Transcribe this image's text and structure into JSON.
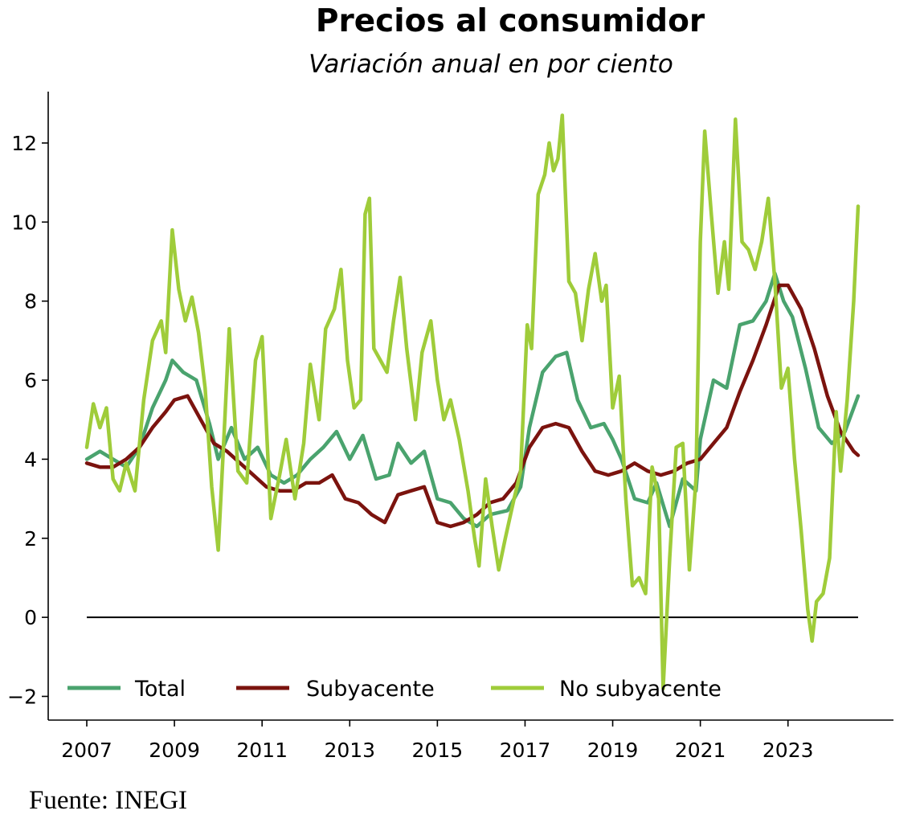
{
  "chart_data": {
    "type": "line",
    "title": "Precios al consumidor",
    "subtitle": "Variación anual en por ciento",
    "source": "Fuente: INEGI",
    "xlim": [
      2007,
      2024.6
    ],
    "ylim": [
      -2.6,
      13.3
    ],
    "xticks": [
      {
        "value": 2007,
        "label": "2007"
      },
      {
        "value": 2009,
        "label": "2009"
      },
      {
        "value": 2011,
        "label": "2011"
      },
      {
        "value": 2013,
        "label": "2013"
      },
      {
        "value": 2015,
        "label": "2015"
      },
      {
        "value": 2017,
        "label": "2017"
      },
      {
        "value": 2019,
        "label": "2019"
      },
      {
        "value": 2021,
        "label": "2021"
      },
      {
        "value": 2023,
        "label": "2023"
      }
    ],
    "yticks": [
      {
        "value": -2,
        "label": "−2"
      },
      {
        "value": 0,
        "label": "0"
      },
      {
        "value": 2,
        "label": "2"
      },
      {
        "value": 4,
        "label": "4"
      },
      {
        "value": 6,
        "label": "6"
      },
      {
        "value": 8,
        "label": "8"
      },
      {
        "value": 10,
        "label": "10"
      },
      {
        "value": 12,
        "label": "12"
      }
    ],
    "reference_line": 0,
    "grid": false,
    "legend_position": "bottom-left",
    "series": [
      {
        "name": "Total",
        "color": "#4aa36e",
        "points": [
          [
            2007.0,
            4.0
          ],
          [
            2007.3,
            4.2
          ],
          [
            2007.6,
            4.0
          ],
          [
            2007.9,
            3.8
          ],
          [
            2008.2,
            4.3
          ],
          [
            2008.5,
            5.3
          ],
          [
            2008.8,
            6.0
          ],
          [
            2008.95,
            6.5
          ],
          [
            2009.2,
            6.2
          ],
          [
            2009.5,
            6.0
          ],
          [
            2009.8,
            4.9
          ],
          [
            2010.0,
            4.0
          ],
          [
            2010.3,
            4.8
          ],
          [
            2010.6,
            4.0
          ],
          [
            2010.9,
            4.3
          ],
          [
            2011.2,
            3.6
          ],
          [
            2011.5,
            3.4
          ],
          [
            2011.8,
            3.6
          ],
          [
            2012.1,
            4.0
          ],
          [
            2012.4,
            4.3
          ],
          [
            2012.7,
            4.7
          ],
          [
            2013.0,
            4.0
          ],
          [
            2013.3,
            4.6
          ],
          [
            2013.6,
            3.5
          ],
          [
            2013.9,
            3.6
          ],
          [
            2014.1,
            4.4
          ],
          [
            2014.4,
            3.9
          ],
          [
            2014.7,
            4.2
          ],
          [
            2015.0,
            3.0
          ],
          [
            2015.3,
            2.9
          ],
          [
            2015.6,
            2.5
          ],
          [
            2015.9,
            2.3
          ],
          [
            2016.2,
            2.6
          ],
          [
            2016.6,
            2.7
          ],
          [
            2016.9,
            3.3
          ],
          [
            2017.1,
            4.8
          ],
          [
            2017.4,
            6.2
          ],
          [
            2017.7,
            6.6
          ],
          [
            2017.95,
            6.7
          ],
          [
            2018.2,
            5.5
          ],
          [
            2018.5,
            4.8
          ],
          [
            2018.8,
            4.9
          ],
          [
            2019.0,
            4.5
          ],
          [
            2019.2,
            4.0
          ],
          [
            2019.5,
            3.0
          ],
          [
            2019.8,
            2.9
          ],
          [
            2020.0,
            3.4
          ],
          [
            2020.3,
            2.3
          ],
          [
            2020.6,
            3.5
          ],
          [
            2020.9,
            3.2
          ],
          [
            2021.0,
            4.5
          ],
          [
            2021.3,
            6.0
          ],
          [
            2021.6,
            5.8
          ],
          [
            2021.9,
            7.4
          ],
          [
            2022.2,
            7.5
          ],
          [
            2022.5,
            8.0
          ],
          [
            2022.7,
            8.7
          ],
          [
            2022.9,
            8.0
          ],
          [
            2023.1,
            7.6
          ],
          [
            2023.4,
            6.3
          ],
          [
            2023.7,
            4.8
          ],
          [
            2024.0,
            4.4
          ],
          [
            2024.3,
            4.7
          ],
          [
            2024.6,
            5.6
          ]
        ]
      },
      {
        "name": "Subyacente",
        "color": "#7b130e",
        "points": [
          [
            2007.0,
            3.9
          ],
          [
            2007.3,
            3.8
          ],
          [
            2007.6,
            3.8
          ],
          [
            2007.9,
            4.0
          ],
          [
            2008.2,
            4.3
          ],
          [
            2008.5,
            4.8
          ],
          [
            2008.8,
            5.2
          ],
          [
            2009.0,
            5.5
          ],
          [
            2009.3,
            5.6
          ],
          [
            2009.6,
            5.0
          ],
          [
            2009.9,
            4.4
          ],
          [
            2010.2,
            4.2
          ],
          [
            2010.5,
            3.9
          ],
          [
            2010.8,
            3.6
          ],
          [
            2011.1,
            3.3
          ],
          [
            2011.4,
            3.2
          ],
          [
            2011.7,
            3.2
          ],
          [
            2012.0,
            3.4
          ],
          [
            2012.3,
            3.4
          ],
          [
            2012.6,
            3.6
          ],
          [
            2012.9,
            3.0
          ],
          [
            2013.2,
            2.9
          ],
          [
            2013.5,
            2.6
          ],
          [
            2013.8,
            2.4
          ],
          [
            2014.1,
            3.1
          ],
          [
            2014.4,
            3.2
          ],
          [
            2014.7,
            3.3
          ],
          [
            2015.0,
            2.4
          ],
          [
            2015.3,
            2.3
          ],
          [
            2015.6,
            2.4
          ],
          [
            2015.9,
            2.6
          ],
          [
            2016.2,
            2.9
          ],
          [
            2016.5,
            3.0
          ],
          [
            2016.8,
            3.4
          ],
          [
            2017.1,
            4.3
          ],
          [
            2017.4,
            4.8
          ],
          [
            2017.7,
            4.9
          ],
          [
            2018.0,
            4.8
          ],
          [
            2018.3,
            4.2
          ],
          [
            2018.6,
            3.7
          ],
          [
            2018.9,
            3.6
          ],
          [
            2019.2,
            3.7
          ],
          [
            2019.5,
            3.9
          ],
          [
            2019.8,
            3.7
          ],
          [
            2020.1,
            3.6
          ],
          [
            2020.4,
            3.7
          ],
          [
            2020.7,
            3.9
          ],
          [
            2021.0,
            4.0
          ],
          [
            2021.3,
            4.4
          ],
          [
            2021.6,
            4.8
          ],
          [
            2021.9,
            5.7
          ],
          [
            2022.2,
            6.5
          ],
          [
            2022.5,
            7.4
          ],
          [
            2022.8,
            8.4
          ],
          [
            2023.0,
            8.4
          ],
          [
            2023.3,
            7.8
          ],
          [
            2023.6,
            6.8
          ],
          [
            2023.9,
            5.6
          ],
          [
            2024.2,
            4.7
          ],
          [
            2024.5,
            4.2
          ],
          [
            2024.6,
            4.1
          ]
        ]
      },
      {
        "name": "No subyacente",
        "color": "#9fcc3a",
        "points": [
          [
            2007.0,
            4.3
          ],
          [
            2007.15,
            5.4
          ],
          [
            2007.3,
            4.8
          ],
          [
            2007.45,
            5.3
          ],
          [
            2007.6,
            3.5
          ],
          [
            2007.75,
            3.2
          ],
          [
            2007.9,
            3.9
          ],
          [
            2008.1,
            3.2
          ],
          [
            2008.3,
            5.5
          ],
          [
            2008.5,
            7.0
          ],
          [
            2008.7,
            7.5
          ],
          [
            2008.8,
            6.7
          ],
          [
            2008.95,
            9.8
          ],
          [
            2009.1,
            8.3
          ],
          [
            2009.25,
            7.5
          ],
          [
            2009.4,
            8.1
          ],
          [
            2009.55,
            7.2
          ],
          [
            2009.7,
            5.8
          ],
          [
            2009.85,
            3.3
          ],
          [
            2010.0,
            1.7
          ],
          [
            2010.15,
            5.0
          ],
          [
            2010.25,
            7.3
          ],
          [
            2010.45,
            3.7
          ],
          [
            2010.65,
            3.4
          ],
          [
            2010.85,
            6.5
          ],
          [
            2011.0,
            7.1
          ],
          [
            2011.2,
            2.5
          ],
          [
            2011.4,
            3.6
          ],
          [
            2011.55,
            4.5
          ],
          [
            2011.75,
            3.0
          ],
          [
            2011.95,
            4.4
          ],
          [
            2012.1,
            6.4
          ],
          [
            2012.3,
            5.0
          ],
          [
            2012.45,
            7.3
          ],
          [
            2012.65,
            7.8
          ],
          [
            2012.8,
            8.8
          ],
          [
            2012.95,
            6.5
          ],
          [
            2013.1,
            5.3
          ],
          [
            2013.25,
            5.5
          ],
          [
            2013.35,
            10.2
          ],
          [
            2013.45,
            10.6
          ],
          [
            2013.55,
            6.8
          ],
          [
            2013.7,
            6.5
          ],
          [
            2013.85,
            6.2
          ],
          [
            2014.0,
            7.5
          ],
          [
            2014.15,
            8.6
          ],
          [
            2014.3,
            6.8
          ],
          [
            2014.5,
            5.0
          ],
          [
            2014.65,
            6.7
          ],
          [
            2014.85,
            7.5
          ],
          [
            2015.0,
            6.0
          ],
          [
            2015.15,
            5.0
          ],
          [
            2015.3,
            5.5
          ],
          [
            2015.5,
            4.5
          ],
          [
            2015.7,
            3.2
          ],
          [
            2015.85,
            2.0
          ],
          [
            2015.95,
            1.3
          ],
          [
            2016.1,
            3.5
          ],
          [
            2016.25,
            2.3
          ],
          [
            2016.4,
            1.2
          ],
          [
            2016.55,
            2.0
          ],
          [
            2016.75,
            3.0
          ],
          [
            2016.9,
            3.7
          ],
          [
            2017.05,
            7.4
          ],
          [
            2017.15,
            6.8
          ],
          [
            2017.3,
            10.7
          ],
          [
            2017.45,
            11.2
          ],
          [
            2017.55,
            12.0
          ],
          [
            2017.65,
            11.3
          ],
          [
            2017.75,
            11.6
          ],
          [
            2017.85,
            12.7
          ],
          [
            2018.0,
            8.5
          ],
          [
            2018.15,
            8.2
          ],
          [
            2018.3,
            7.0
          ],
          [
            2018.45,
            8.3
          ],
          [
            2018.6,
            9.2
          ],
          [
            2018.75,
            8.0
          ],
          [
            2018.85,
            8.4
          ],
          [
            2019.0,
            5.3
          ],
          [
            2019.15,
            6.1
          ],
          [
            2019.3,
            3.0
          ],
          [
            2019.45,
            0.8
          ],
          [
            2019.6,
            1.0
          ],
          [
            2019.75,
            0.6
          ],
          [
            2019.9,
            3.8
          ],
          [
            2020.05,
            3.0
          ],
          [
            2020.15,
            -1.8
          ],
          [
            2020.3,
            1.5
          ],
          [
            2020.45,
            4.3
          ],
          [
            2020.6,
            4.4
          ],
          [
            2020.75,
            1.2
          ],
          [
            2020.9,
            3.5
          ],
          [
            2021.0,
            9.5
          ],
          [
            2021.1,
            12.3
          ],
          [
            2021.25,
            10.2
          ],
          [
            2021.4,
            8.2
          ],
          [
            2021.55,
            9.5
          ],
          [
            2021.65,
            8.3
          ],
          [
            2021.8,
            12.6
          ],
          [
            2021.95,
            9.5
          ],
          [
            2022.1,
            9.3
          ],
          [
            2022.25,
            8.8
          ],
          [
            2022.4,
            9.5
          ],
          [
            2022.55,
            10.6
          ],
          [
            2022.7,
            8.5
          ],
          [
            2022.85,
            5.8
          ],
          [
            2023.0,
            6.3
          ],
          [
            2023.15,
            4.0
          ],
          [
            2023.3,
            2.2
          ],
          [
            2023.45,
            0.2
          ],
          [
            2023.55,
            -0.6
          ],
          [
            2023.65,
            0.4
          ],
          [
            2023.8,
            0.6
          ],
          [
            2023.95,
            1.5
          ],
          [
            2024.1,
            5.2
          ],
          [
            2024.2,
            3.7
          ],
          [
            2024.35,
            5.5
          ],
          [
            2024.5,
            8.0
          ],
          [
            2024.6,
            10.4
          ]
        ]
      }
    ]
  }
}
